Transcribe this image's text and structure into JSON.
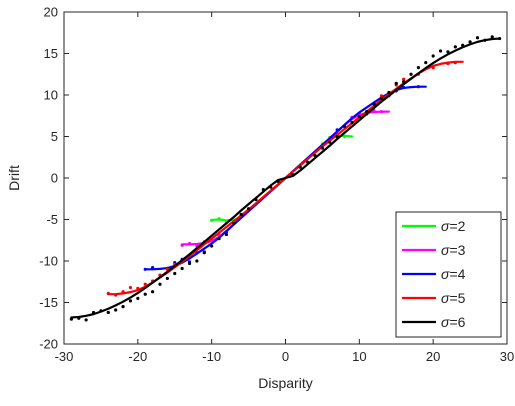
{
  "chart_data": {
    "type": "line",
    "title": "",
    "xlabel": "Disparity",
    "ylabel": "Drift",
    "xlim": [
      -30,
      30
    ],
    "ylim": [
      -20,
      20
    ],
    "xticks": [
      -30,
      -20,
      -10,
      0,
      10,
      20,
      30
    ],
    "yticks": [
      -20,
      -15,
      -10,
      -5,
      0,
      5,
      10,
      15,
      20
    ],
    "grid": false,
    "legend_position": "bottom-right",
    "series": [
      {
        "name": "σ=2",
        "sym": "σ",
        "eq": "=2",
        "color": "#00ff00",
        "curve": [
          [
            -10,
            -5.05
          ],
          [
            -9,
            -5.0
          ],
          [
            -8,
            -5.1
          ],
          [
            -7,
            -5.05
          ],
          [
            -6,
            -4.75
          ],
          [
            -5,
            -4.0
          ],
          [
            -4,
            -3.2
          ],
          [
            -3,
            -2.4
          ],
          [
            -2,
            -1.6
          ],
          [
            -1,
            -0.8
          ],
          [
            0,
            0
          ],
          [
            1,
            0.8
          ],
          [
            2,
            1.6
          ],
          [
            3,
            2.4
          ],
          [
            4,
            3.2
          ],
          [
            5,
            4.0
          ],
          [
            6,
            4.75
          ],
          [
            7,
            5.05
          ],
          [
            8,
            5.1
          ],
          [
            9,
            5.0
          ]
        ],
        "points": [
          [
            -10,
            -5.1
          ],
          [
            -9,
            -4.9
          ],
          [
            -8,
            -5.3
          ],
          [
            -7,
            -5.1
          ],
          [
            -6,
            -4.6
          ],
          [
            5,
            4.1
          ],
          [
            6,
            4.9
          ],
          [
            7,
            5.2
          ],
          [
            8,
            5.0
          ]
        ]
      },
      {
        "name": "σ=3",
        "sym": "σ",
        "eq": "=3",
        "color": "#ff00ff",
        "curve": [
          [
            -14,
            -8.0
          ],
          [
            -13,
            -8.0
          ],
          [
            -12,
            -7.95
          ],
          [
            -11,
            -7.85
          ],
          [
            -10,
            -7.6
          ],
          [
            -9,
            -7.1
          ],
          [
            -8,
            -6.4
          ],
          [
            -7,
            -5.6
          ],
          [
            -6,
            -4.8
          ],
          [
            -5,
            -4.0
          ],
          [
            0,
            0
          ],
          [
            5,
            4.0
          ],
          [
            6,
            4.8
          ],
          [
            7,
            5.6
          ],
          [
            8,
            6.4
          ],
          [
            9,
            7.1
          ],
          [
            10,
            7.6
          ],
          [
            11,
            7.85
          ],
          [
            12,
            7.95
          ],
          [
            13,
            8.0
          ],
          [
            14,
            8.0
          ]
        ],
        "points": [
          [
            -14,
            -8.1
          ],
          [
            -13,
            -7.9
          ],
          [
            -12,
            -8.2
          ],
          [
            -11,
            -7.7
          ],
          [
            -10,
            -7.5
          ],
          [
            -9,
            -6.9
          ],
          [
            9,
            7.3
          ],
          [
            10,
            7.8
          ],
          [
            11,
            7.7
          ],
          [
            12,
            8.1
          ],
          [
            13,
            8.0
          ]
        ]
      },
      {
        "name": "σ=4",
        "sym": "σ",
        "eq": "=4",
        "color": "#0000ff",
        "curve": [
          [
            -19,
            -11.0
          ],
          [
            -18,
            -11.0
          ],
          [
            -17,
            -10.95
          ],
          [
            -16,
            -10.85
          ],
          [
            -15,
            -10.6
          ],
          [
            -14,
            -10.2
          ],
          [
            -13,
            -9.7
          ],
          [
            -12,
            -9.1
          ],
          [
            -11,
            -8.5
          ],
          [
            -10,
            -7.9
          ],
          [
            -9,
            -7.2
          ],
          [
            -8,
            -6.4
          ],
          [
            -7,
            -5.6
          ],
          [
            -6,
            -4.8
          ],
          [
            -5,
            -4.0
          ],
          [
            0,
            0
          ],
          [
            5,
            4.0
          ],
          [
            6,
            4.8
          ],
          [
            7,
            5.6
          ],
          [
            8,
            6.4
          ],
          [
            9,
            7.2
          ],
          [
            10,
            7.9
          ],
          [
            11,
            8.5
          ],
          [
            12,
            9.1
          ],
          [
            13,
            9.7
          ],
          [
            14,
            10.2
          ],
          [
            15,
            10.6
          ],
          [
            16,
            10.85
          ],
          [
            17,
            10.95
          ],
          [
            18,
            11.0
          ],
          [
            19,
            11.0
          ]
        ],
        "points": [
          [
            -19,
            -11.0
          ],
          [
            -18,
            -10.8
          ],
          [
            -16,
            -10.9
          ],
          [
            -15,
            -10.2
          ],
          [
            -14,
            -9.8
          ],
          [
            -13,
            -10.1
          ],
          [
            -12,
            -9.0
          ],
          [
            -11,
            -8.9
          ],
          [
            -8,
            -6.5
          ],
          [
            7,
            5.8
          ],
          [
            12,
            8.9
          ],
          [
            14,
            9.9
          ],
          [
            15,
            10.5
          ],
          [
            16,
            10.9
          ],
          [
            18,
            11.0
          ]
        ]
      },
      {
        "name": "σ=5",
        "sym": "σ",
        "eq": "=5",
        "color": "#ff0000",
        "curve": [
          [
            -24,
            -14.0
          ],
          [
            -23,
            -14.0
          ],
          [
            -22,
            -13.9
          ],
          [
            -21,
            -13.75
          ],
          [
            -20,
            -13.5
          ],
          [
            -19,
            -13.1
          ],
          [
            -18,
            -12.6
          ],
          [
            -17,
            -12.0
          ],
          [
            -16,
            -11.4
          ],
          [
            -15,
            -10.75
          ],
          [
            -14,
            -10.1
          ],
          [
            -13,
            -9.4
          ],
          [
            -12,
            -8.7
          ],
          [
            -11,
            -8.0
          ],
          [
            -10,
            -7.3
          ],
          [
            -9,
            -6.6
          ],
          [
            -8,
            -5.9
          ],
          [
            -7,
            -5.2
          ],
          [
            -6,
            -4.5
          ],
          [
            -5,
            -3.8
          ],
          [
            0,
            0
          ],
          [
            5,
            3.8
          ],
          [
            6,
            4.5
          ],
          [
            7,
            5.2
          ],
          [
            8,
            5.9
          ],
          [
            9,
            6.6
          ],
          [
            10,
            7.3
          ],
          [
            11,
            8.0
          ],
          [
            12,
            8.7
          ],
          [
            13,
            9.4
          ],
          [
            14,
            10.1
          ],
          [
            15,
            10.75
          ],
          [
            16,
            11.4
          ],
          [
            17,
            12.0
          ],
          [
            18,
            12.6
          ],
          [
            19,
            13.1
          ],
          [
            20,
            13.5
          ],
          [
            21,
            13.75
          ],
          [
            22,
            13.9
          ],
          [
            23,
            14.0
          ],
          [
            24,
            14.0
          ]
        ],
        "points": [
          [
            -24,
            -13.9
          ],
          [
            -23,
            -14.1
          ],
          [
            -22,
            -13.7
          ],
          [
            -21,
            -13.2
          ],
          [
            -20,
            -13.3
          ],
          [
            -19,
            -12.8
          ],
          [
            -18,
            -12.4
          ],
          [
            -17,
            -11.7
          ],
          [
            -16,
            -11.0
          ],
          [
            -15,
            -10.4
          ],
          [
            13,
            9.9
          ],
          [
            15,
            11.2
          ],
          [
            16,
            11.9
          ],
          [
            18,
            12.5
          ],
          [
            20,
            13.3
          ],
          [
            22,
            13.8
          ],
          [
            23,
            13.9
          ]
        ]
      },
      {
        "name": "σ=6",
        "sym": "σ",
        "eq": "=6",
        "color": "#000000",
        "curve": [
          [
            -29,
            -16.8
          ],
          [
            -28,
            -16.75
          ],
          [
            -27,
            -16.6
          ],
          [
            -26,
            -16.4
          ],
          [
            -25,
            -16.1
          ],
          [
            -24,
            -15.75
          ],
          [
            -23,
            -15.35
          ],
          [
            -22,
            -14.9
          ],
          [
            -21,
            -14.4
          ],
          [
            -20,
            -13.85
          ],
          [
            -19,
            -13.25
          ],
          [
            -18,
            -12.6
          ],
          [
            -17,
            -11.95
          ],
          [
            -16,
            -11.3
          ],
          [
            -15,
            -10.6
          ],
          [
            -14,
            -9.9
          ],
          [
            -13,
            -9.2
          ],
          [
            -12,
            -8.45
          ],
          [
            -11,
            -7.7
          ],
          [
            -10,
            -6.95
          ],
          [
            -9,
            -6.2
          ],
          [
            -8,
            -5.45
          ],
          [
            -7,
            -4.7
          ],
          [
            -6,
            -3.9
          ],
          [
            -5,
            -3.15
          ],
          [
            -4,
            -2.4
          ],
          [
            -3,
            -1.65
          ],
          [
            -2,
            -0.9
          ],
          [
            -1,
            -0.25
          ],
          [
            0,
            0
          ],
          [
            1,
            0.25
          ],
          [
            2,
            0.9
          ],
          [
            3,
            1.65
          ],
          [
            4,
            2.4
          ],
          [
            5,
            3.15
          ],
          [
            6,
            3.9
          ],
          [
            7,
            4.7
          ],
          [
            8,
            5.45
          ],
          [
            9,
            6.2
          ],
          [
            10,
            6.95
          ],
          [
            11,
            7.7
          ],
          [
            12,
            8.45
          ],
          [
            13,
            9.2
          ],
          [
            14,
            9.9
          ],
          [
            15,
            10.6
          ],
          [
            16,
            11.3
          ],
          [
            17,
            11.95
          ],
          [
            18,
            12.6
          ],
          [
            19,
            13.25
          ],
          [
            20,
            13.85
          ],
          [
            21,
            14.4
          ],
          [
            22,
            14.9
          ],
          [
            23,
            15.35
          ],
          [
            24,
            15.75
          ],
          [
            25,
            16.1
          ],
          [
            26,
            16.4
          ],
          [
            27,
            16.6
          ],
          [
            28,
            16.75
          ],
          [
            29,
            16.8
          ]
        ],
        "points": [
          [
            -29,
            -17.0
          ],
          [
            -28,
            -16.9
          ],
          [
            -27,
            -17.1
          ],
          [
            -26,
            -16.2
          ],
          [
            -25,
            -16.0
          ],
          [
            -24,
            -16.2
          ],
          [
            -23,
            -15.9
          ],
          [
            -22,
            -15.5
          ],
          [
            -21,
            -14.8
          ],
          [
            -20,
            -14.5
          ],
          [
            -19,
            -14.0
          ],
          [
            -18,
            -13.7
          ],
          [
            -17,
            -12.8
          ],
          [
            -16,
            -12.1
          ],
          [
            -15,
            -11.5
          ],
          [
            -14,
            -10.9
          ],
          [
            -13,
            -10.3
          ],
          [
            -12,
            -10.0
          ],
          [
            -11,
            -9.0
          ],
          [
            -10,
            -8.2
          ],
          [
            -9,
            -7.3
          ],
          [
            -8,
            -6.8
          ],
          [
            -7,
            -5.5
          ],
          [
            -6,
            -4.4
          ],
          [
            -5,
            -3.7
          ],
          [
            -4,
            -2.6
          ],
          [
            -3,
            -1.4
          ],
          [
            -2,
            -1.1
          ],
          [
            -1,
            -0.4
          ],
          [
            1,
            0.4
          ],
          [
            2,
            1.3
          ],
          [
            3,
            1.9
          ],
          [
            4,
            2.7
          ],
          [
            5,
            3.6
          ],
          [
            6,
            4.3
          ],
          [
            7,
            5.0
          ],
          [
            8,
            6.2
          ],
          [
            9,
            6.7
          ],
          [
            10,
            7.4
          ],
          [
            11,
            8.0
          ],
          [
            12,
            8.9
          ],
          [
            13,
            9.6
          ],
          [
            14,
            10.3
          ],
          [
            15,
            11.4
          ],
          [
            16,
            11.6
          ],
          [
            17,
            12.5
          ],
          [
            18,
            13.3
          ],
          [
            19,
            13.9
          ],
          [
            20,
            14.7
          ],
          [
            21,
            15.3
          ],
          [
            22,
            15.2
          ],
          [
            23,
            15.8
          ],
          [
            24,
            16.0
          ],
          [
            25,
            16.4
          ],
          [
            26,
            16.9
          ],
          [
            27,
            16.6
          ],
          [
            28,
            17.0
          ],
          [
            29,
            16.8
          ]
        ]
      }
    ]
  }
}
